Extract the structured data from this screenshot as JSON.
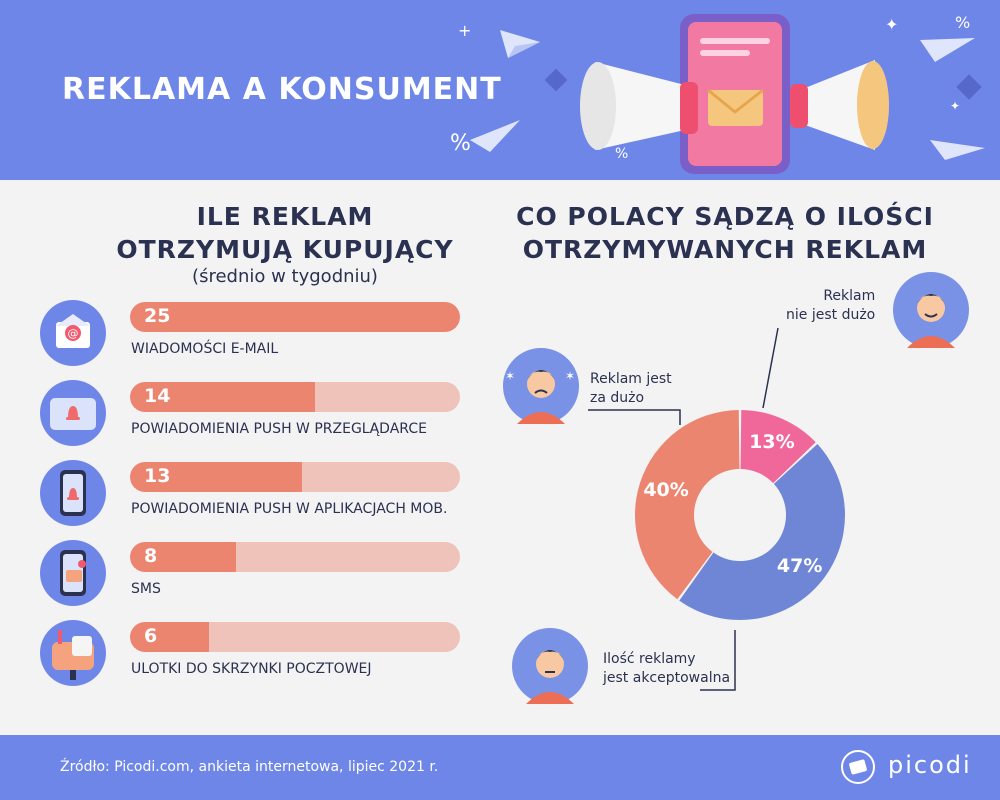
{
  "header": {
    "title": "REKLAMA A KONSUMENT"
  },
  "left": {
    "title_line1": "ILE REKLAM",
    "title_line2": "OTRZYMUJĄ KUPUJĄCY",
    "subtitle": "(średnio w tygodniu)"
  },
  "right": {
    "title_line1": "CO POLACY SĄDZĄ O ILOŚCI",
    "title_line2": "OTRZYMYWANYCH REKLAM",
    "comments": {
      "not_much_line1": "Reklam",
      "not_much_line2": "nie jest dużo",
      "too_much_line1": "Reklam jest",
      "too_much_line2": "za dużo",
      "acceptable_line1": "Ilość reklamy",
      "acceptable_line2": "jest akceptowalna"
    }
  },
  "chart_data": [
    {
      "type": "bar",
      "orientation": "horizontal",
      "title": "ILE REKLAM OTRZYMUJĄ KUPUJĄCY",
      "subtitle": "(średnio w tygodniu)",
      "categories": [
        "WIADOMOŚCI E-MAIL",
        "POWIADOMIENIA PUSH W PRZEGLĄDARCE",
        "POWIADOMIENIA PUSH W APLIKACJACH MOB.",
        "SMS",
        "ULOTKI DO SKRZYNKI POCZTOWEJ"
      ],
      "values": [
        25,
        14,
        13,
        8,
        6
      ],
      "value_labels": [
        "25",
        "14",
        "13",
        "8",
        "6"
      ],
      "xlim": [
        0,
        25
      ],
      "icons": [
        "email-envelope-icon",
        "browser-bell-icon",
        "phone-bell-icon",
        "phone-message-icon",
        "mailbox-icon"
      ],
      "colors": {
        "fill": "#ec8570",
        "track": "#efc2ba"
      }
    },
    {
      "type": "pie",
      "subtype": "donut",
      "title": "CO POLACY SĄDZĄ O ILOŚCI OTRZYMYWANYCH REKLAM",
      "slices": [
        {
          "label": "Reklam nie jest dużo",
          "value": 13,
          "value_label": "13%",
          "color": "#f0689a"
        },
        {
          "label": "Ilość reklamy jest akceptowalna",
          "value": 47,
          "value_label": "47%",
          "color": "#6f86d6"
        },
        {
          "label": "Reklam jest za dużo",
          "value": 40,
          "value_label": "40%",
          "color": "#ec8570"
        }
      ]
    }
  ],
  "footer": {
    "source": "Źródło: Picodi.com, ankieta internetowa, lipiec 2021 r.",
    "logo": "picodi"
  },
  "colors": {
    "header_bg": "#6e86e8",
    "page_bg": "#f3f3f3",
    "text_dark": "#2b3150",
    "bar_fill": "#ec8570",
    "bar_track": "#efc2ba"
  }
}
